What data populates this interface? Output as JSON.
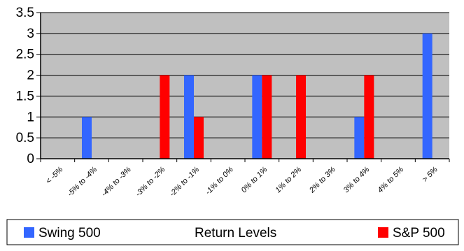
{
  "chart_data": {
    "type": "bar",
    "xlabel": "Return Levels",
    "ylabel": "",
    "ylim": [
      0,
      3.5
    ],
    "yticks": [
      0,
      0.5,
      1,
      1.5,
      2,
      2.5,
      3,
      3.5
    ],
    "grid": true,
    "legend_placement": "bottom",
    "categories": [
      "< -5%",
      "-5% to -4%",
      "-4% to -3%",
      "-3% to -2%",
      "-2% to -1%",
      "-1% to 0%",
      "0% to 1%",
      "1% to 2%",
      "2% to 3%",
      "3% to 4%",
      "4% to 5%",
      "> 5%"
    ],
    "series": [
      {
        "name": "Swing 500",
        "color": "#3366ff",
        "values": [
          0,
          1,
          0,
          0,
          2,
          0,
          2,
          0,
          0,
          1,
          0,
          3
        ]
      },
      {
        "name": "S&P 500",
        "color": "#ff0000",
        "values": [
          0,
          0,
          0,
          2,
          1,
          0,
          2,
          2,
          0,
          2,
          0,
          0
        ]
      }
    ]
  },
  "colors": {
    "plot_background": "#c0c0c0",
    "gridline": "#000000",
    "axis": "#000000"
  }
}
